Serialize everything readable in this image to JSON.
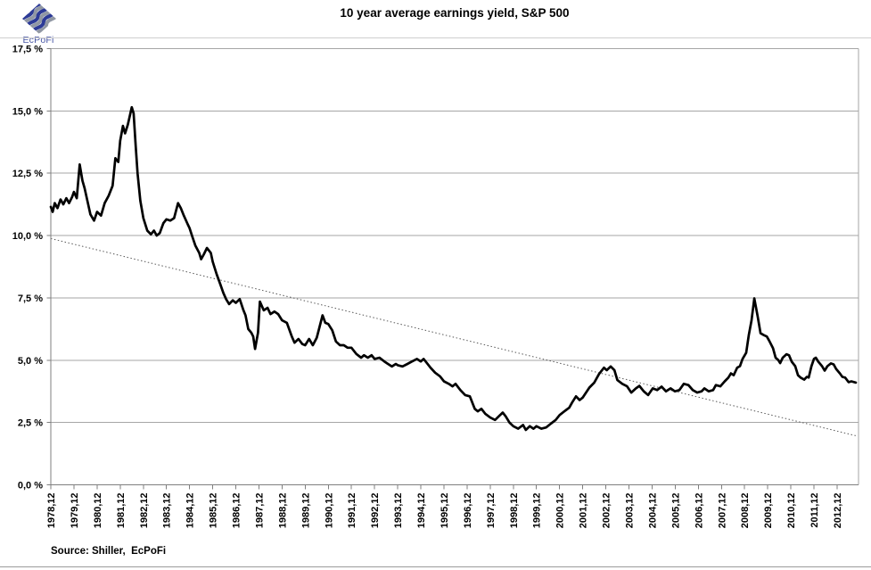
{
  "header": {
    "title": "10 year average earnings yield, S&P 500",
    "logo_text": "EcPoFi"
  },
  "footer": {
    "source_label": "Source: Shiller,  EcPoFi"
  },
  "colors": {
    "series": "#000000",
    "trend": "#595959",
    "gridline": "#a6a6a6",
    "axis": "#7f7f7f",
    "logo_navy": "#2c3a96",
    "logo_gray": "#9097a3",
    "logo_text_blue": "#4756a5"
  },
  "chart_data": {
    "type": "line",
    "title": "10 year average earnings yield, S&P 500",
    "grid": "horizontal",
    "legend": "none",
    "x_axis": {
      "first_tick_year": 1978.96,
      "tick_interval_years": 1,
      "x_max_year": 2013.9,
      "tick_labels": [
        "1978,12",
        "1979,12",
        "1980,12",
        "1981,12",
        "1982,12",
        "1983,12",
        "1984,12",
        "1985,12",
        "1986,12",
        "1987,12",
        "1988,12",
        "1989,12",
        "1990,12",
        "1991,12",
        "1992,12",
        "1993,12",
        "1994,12",
        "1995,12",
        "1996,12",
        "1997,12",
        "1998,12",
        "1999,12",
        "2000,12",
        "2001,12",
        "2002,12",
        "2003,12",
        "2004,12",
        "2005,12",
        "2006,12",
        "2007,12",
        "2008,12",
        "2009,12",
        "2010,12",
        "2011,12",
        "2012,12"
      ]
    },
    "y_axis": {
      "min": 0,
      "max": 17.5,
      "tick_values": [
        0,
        2.5,
        5,
        7.5,
        10,
        12.5,
        15,
        17.5
      ],
      "tick_labels": [
        "0,0 %",
        "2,5 %",
        "5,0 %",
        "7,5 %",
        "10,0 %",
        "12,5 %",
        "15,0 %",
        "17,5 %"
      ]
    },
    "trendline": {
      "style": "dotted",
      "points": [
        [
          1978.96,
          9.88
        ],
        [
          2013.77,
          1.97
        ]
      ]
    },
    "series": [
      {
        "name": "10 year average earnings yield",
        "points": [
          [
            1978.96,
            11.15
          ],
          [
            1979.04,
            10.95
          ],
          [
            1979.13,
            11.3
          ],
          [
            1979.25,
            11.1
          ],
          [
            1979.38,
            11.45
          ],
          [
            1979.5,
            11.25
          ],
          [
            1979.63,
            11.5
          ],
          [
            1979.75,
            11.3
          ],
          [
            1979.88,
            11.55
          ],
          [
            1979.96,
            11.75
          ],
          [
            1980.08,
            11.5
          ],
          [
            1980.21,
            12.85
          ],
          [
            1980.33,
            12.2
          ],
          [
            1980.42,
            11.9
          ],
          [
            1980.54,
            11.4
          ],
          [
            1980.67,
            10.85
          ],
          [
            1980.83,
            10.6
          ],
          [
            1980.96,
            10.95
          ],
          [
            1981.13,
            10.8
          ],
          [
            1981.29,
            11.3
          ],
          [
            1981.46,
            11.6
          ],
          [
            1981.63,
            12.0
          ],
          [
            1981.75,
            13.1
          ],
          [
            1981.88,
            12.95
          ],
          [
            1981.96,
            13.8
          ],
          [
            1982.08,
            14.4
          ],
          [
            1982.17,
            14.1
          ],
          [
            1982.29,
            14.45
          ],
          [
            1982.46,
            15.15
          ],
          [
            1982.54,
            14.9
          ],
          [
            1982.63,
            13.6
          ],
          [
            1982.71,
            12.5
          ],
          [
            1982.83,
            11.4
          ],
          [
            1982.96,
            10.7
          ],
          [
            1983.13,
            10.2
          ],
          [
            1983.29,
            10.05
          ],
          [
            1983.42,
            10.2
          ],
          [
            1983.54,
            10.0
          ],
          [
            1983.67,
            10.1
          ],
          [
            1983.83,
            10.5
          ],
          [
            1983.96,
            10.65
          ],
          [
            1984.13,
            10.6
          ],
          [
            1984.29,
            10.7
          ],
          [
            1984.46,
            11.3
          ],
          [
            1984.58,
            11.1
          ],
          [
            1984.71,
            10.8
          ],
          [
            1984.88,
            10.45
          ],
          [
            1984.96,
            10.3
          ],
          [
            1985.08,
            9.95
          ],
          [
            1985.21,
            9.6
          ],
          [
            1985.38,
            9.3
          ],
          [
            1985.46,
            9.05
          ],
          [
            1985.58,
            9.25
          ],
          [
            1985.71,
            9.5
          ],
          [
            1985.88,
            9.3
          ],
          [
            1985.96,
            8.95
          ],
          [
            1986.13,
            8.45
          ],
          [
            1986.29,
            8.05
          ],
          [
            1986.42,
            7.7
          ],
          [
            1986.54,
            7.45
          ],
          [
            1986.67,
            7.25
          ],
          [
            1986.83,
            7.4
          ],
          [
            1986.96,
            7.3
          ],
          [
            1987.13,
            7.45
          ],
          [
            1987.29,
            7.0
          ],
          [
            1987.38,
            6.8
          ],
          [
            1987.5,
            6.25
          ],
          [
            1987.63,
            6.1
          ],
          [
            1987.71,
            5.95
          ],
          [
            1987.79,
            5.45
          ],
          [
            1987.92,
            6.1
          ],
          [
            1988.0,
            7.35
          ],
          [
            1988.17,
            7.0
          ],
          [
            1988.33,
            7.1
          ],
          [
            1988.46,
            6.85
          ],
          [
            1988.63,
            6.95
          ],
          [
            1988.79,
            6.85
          ],
          [
            1988.96,
            6.6
          ],
          [
            1989.17,
            6.5
          ],
          [
            1989.38,
            5.95
          ],
          [
            1989.5,
            5.7
          ],
          [
            1989.67,
            5.85
          ],
          [
            1989.83,
            5.65
          ],
          [
            1989.96,
            5.6
          ],
          [
            1990.13,
            5.85
          ],
          [
            1990.29,
            5.6
          ],
          [
            1990.46,
            5.9
          ],
          [
            1990.71,
            6.8
          ],
          [
            1990.83,
            6.5
          ],
          [
            1990.96,
            6.45
          ],
          [
            1991.13,
            6.2
          ],
          [
            1991.29,
            5.75
          ],
          [
            1991.46,
            5.6
          ],
          [
            1991.63,
            5.6
          ],
          [
            1991.79,
            5.5
          ],
          [
            1991.96,
            5.5
          ],
          [
            1992.17,
            5.25
          ],
          [
            1992.38,
            5.1
          ],
          [
            1992.5,
            5.2
          ],
          [
            1992.67,
            5.1
          ],
          [
            1992.83,
            5.2
          ],
          [
            1992.96,
            5.05
          ],
          [
            1993.17,
            5.1
          ],
          [
            1993.38,
            4.95
          ],
          [
            1993.54,
            4.85
          ],
          [
            1993.71,
            4.75
          ],
          [
            1993.88,
            4.85
          ],
          [
            1993.96,
            4.8
          ],
          [
            1994.17,
            4.75
          ],
          [
            1994.38,
            4.85
          ],
          [
            1994.58,
            4.95
          ],
          [
            1994.79,
            5.05
          ],
          [
            1994.96,
            4.95
          ],
          [
            1995.08,
            5.05
          ],
          [
            1995.21,
            4.9
          ],
          [
            1995.38,
            4.7
          ],
          [
            1995.58,
            4.5
          ],
          [
            1995.79,
            4.35
          ],
          [
            1995.96,
            4.15
          ],
          [
            1996.17,
            4.05
          ],
          [
            1996.33,
            3.95
          ],
          [
            1996.46,
            4.05
          ],
          [
            1996.67,
            3.8
          ],
          [
            1996.88,
            3.6
          ],
          [
            1997.08,
            3.55
          ],
          [
            1997.29,
            3.05
          ],
          [
            1997.42,
            2.95
          ],
          [
            1997.58,
            3.05
          ],
          [
            1997.75,
            2.85
          ],
          [
            1997.96,
            2.7
          ],
          [
            1998.17,
            2.6
          ],
          [
            1998.33,
            2.75
          ],
          [
            1998.5,
            2.9
          ],
          [
            1998.63,
            2.75
          ],
          [
            1998.79,
            2.5
          ],
          [
            1998.96,
            2.35
          ],
          [
            1999.17,
            2.25
          ],
          [
            1999.38,
            2.4
          ],
          [
            1999.5,
            2.2
          ],
          [
            1999.67,
            2.35
          ],
          [
            1999.83,
            2.25
          ],
          [
            1999.96,
            2.35
          ],
          [
            2000.17,
            2.25
          ],
          [
            2000.38,
            2.3
          ],
          [
            2000.58,
            2.45
          ],
          [
            2000.79,
            2.6
          ],
          [
            2000.96,
            2.8
          ],
          [
            2001.17,
            2.95
          ],
          [
            2001.38,
            3.1
          ],
          [
            2001.5,
            3.3
          ],
          [
            2001.67,
            3.55
          ],
          [
            2001.83,
            3.4
          ],
          [
            2001.96,
            3.5
          ],
          [
            2002.25,
            3.9
          ],
          [
            2002.46,
            4.1
          ],
          [
            2002.67,
            4.45
          ],
          [
            2002.88,
            4.7
          ],
          [
            2003.0,
            4.6
          ],
          [
            2003.17,
            4.75
          ],
          [
            2003.33,
            4.6
          ],
          [
            2003.46,
            4.2
          ],
          [
            2003.67,
            4.05
          ],
          [
            2003.88,
            3.95
          ],
          [
            2004.06,
            3.7
          ],
          [
            2004.26,
            3.87
          ],
          [
            2004.41,
            3.97
          ],
          [
            2004.6,
            3.75
          ],
          [
            2004.79,
            3.6
          ],
          [
            2004.99,
            3.87
          ],
          [
            2005.18,
            3.8
          ],
          [
            2005.37,
            3.94
          ],
          [
            2005.56,
            3.75
          ],
          [
            2005.76,
            3.87
          ],
          [
            2005.95,
            3.75
          ],
          [
            2006.14,
            3.8
          ],
          [
            2006.33,
            4.05
          ],
          [
            2006.53,
            4.0
          ],
          [
            2006.72,
            3.8
          ],
          [
            2006.91,
            3.7
          ],
          [
            2007.1,
            3.75
          ],
          [
            2007.22,
            3.87
          ],
          [
            2007.41,
            3.75
          ],
          [
            2007.6,
            3.8
          ],
          [
            2007.72,
            4.0
          ],
          [
            2007.91,
            3.95
          ],
          [
            2008.1,
            4.15
          ],
          [
            2008.26,
            4.3
          ],
          [
            2008.37,
            4.47
          ],
          [
            2008.49,
            4.4
          ],
          [
            2008.64,
            4.7
          ],
          [
            2008.76,
            4.76
          ],
          [
            2008.87,
            5.05
          ],
          [
            2009.03,
            5.3
          ],
          [
            2009.14,
            6.0
          ],
          [
            2009.26,
            6.6
          ],
          [
            2009.38,
            7.48
          ],
          [
            2009.53,
            6.73
          ],
          [
            2009.65,
            6.08
          ],
          [
            2009.8,
            6.0
          ],
          [
            2009.92,
            5.95
          ],
          [
            2010.03,
            5.77
          ],
          [
            2010.19,
            5.48
          ],
          [
            2010.3,
            5.1
          ],
          [
            2010.42,
            5.0
          ],
          [
            2010.5,
            4.88
          ],
          [
            2010.61,
            5.1
          ],
          [
            2010.77,
            5.24
          ],
          [
            2010.88,
            5.2
          ],
          [
            2011.0,
            4.94
          ],
          [
            2011.15,
            4.76
          ],
          [
            2011.27,
            4.4
          ],
          [
            2011.38,
            4.3
          ],
          [
            2011.54,
            4.22
          ],
          [
            2011.65,
            4.33
          ],
          [
            2011.73,
            4.3
          ],
          [
            2011.85,
            4.76
          ],
          [
            2011.96,
            5.05
          ],
          [
            2012.04,
            5.1
          ],
          [
            2012.15,
            4.94
          ],
          [
            2012.31,
            4.76
          ],
          [
            2012.42,
            4.58
          ],
          [
            2012.54,
            4.76
          ],
          [
            2012.69,
            4.87
          ],
          [
            2012.81,
            4.83
          ],
          [
            2012.92,
            4.65
          ],
          [
            2013.08,
            4.47
          ],
          [
            2013.19,
            4.33
          ],
          [
            2013.31,
            4.3
          ],
          [
            2013.46,
            4.12
          ],
          [
            2013.58,
            4.15
          ],
          [
            2013.77,
            4.1
          ]
        ]
      }
    ]
  }
}
